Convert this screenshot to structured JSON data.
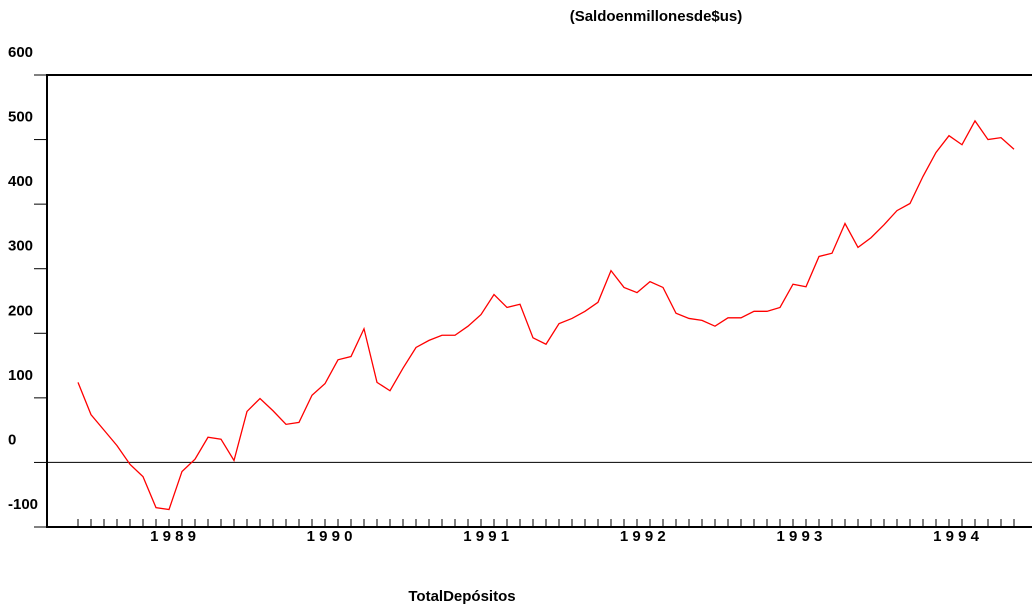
{
  "chart_data": {
    "type": "line",
    "title": "(Saldoenmillonesde$us)",
    "xlabel": "TotalDepósitos",
    "x_group_labels": [
      "1 9 8 9",
      "1 9 9 0",
      "1 9 9 1",
      "1 9 9 2",
      "1 9 9 3",
      "1 9 9 4"
    ],
    "values": [
      124,
      74,
      50,
      26,
      -3,
      -22,
      -70,
      -73,
      -14,
      5,
      39,
      36,
      3,
      79,
      99,
      80,
      59,
      62,
      104,
      122,
      159,
      164,
      207,
      124,
      111,
      146,
      178,
      189,
      197,
      197,
      211,
      229,
      260,
      240,
      245,
      193,
      183,
      215,
      223,
      234,
      248,
      297,
      271,
      263,
      280,
      271,
      231,
      223,
      220,
      211,
      224,
      224,
      234,
      234,
      240,
      276,
      272,
      319,
      324,
      370,
      333,
      348,
      368,
      390,
      401,
      443,
      480,
      506,
      492,
      529,
      500,
      503,
      485
    ],
    "color": "#ff0000",
    "ylim": [
      -100,
      600
    ],
    "yticks": [
      -100,
      0,
      100,
      200,
      300,
      400,
      500,
      600
    ]
  }
}
